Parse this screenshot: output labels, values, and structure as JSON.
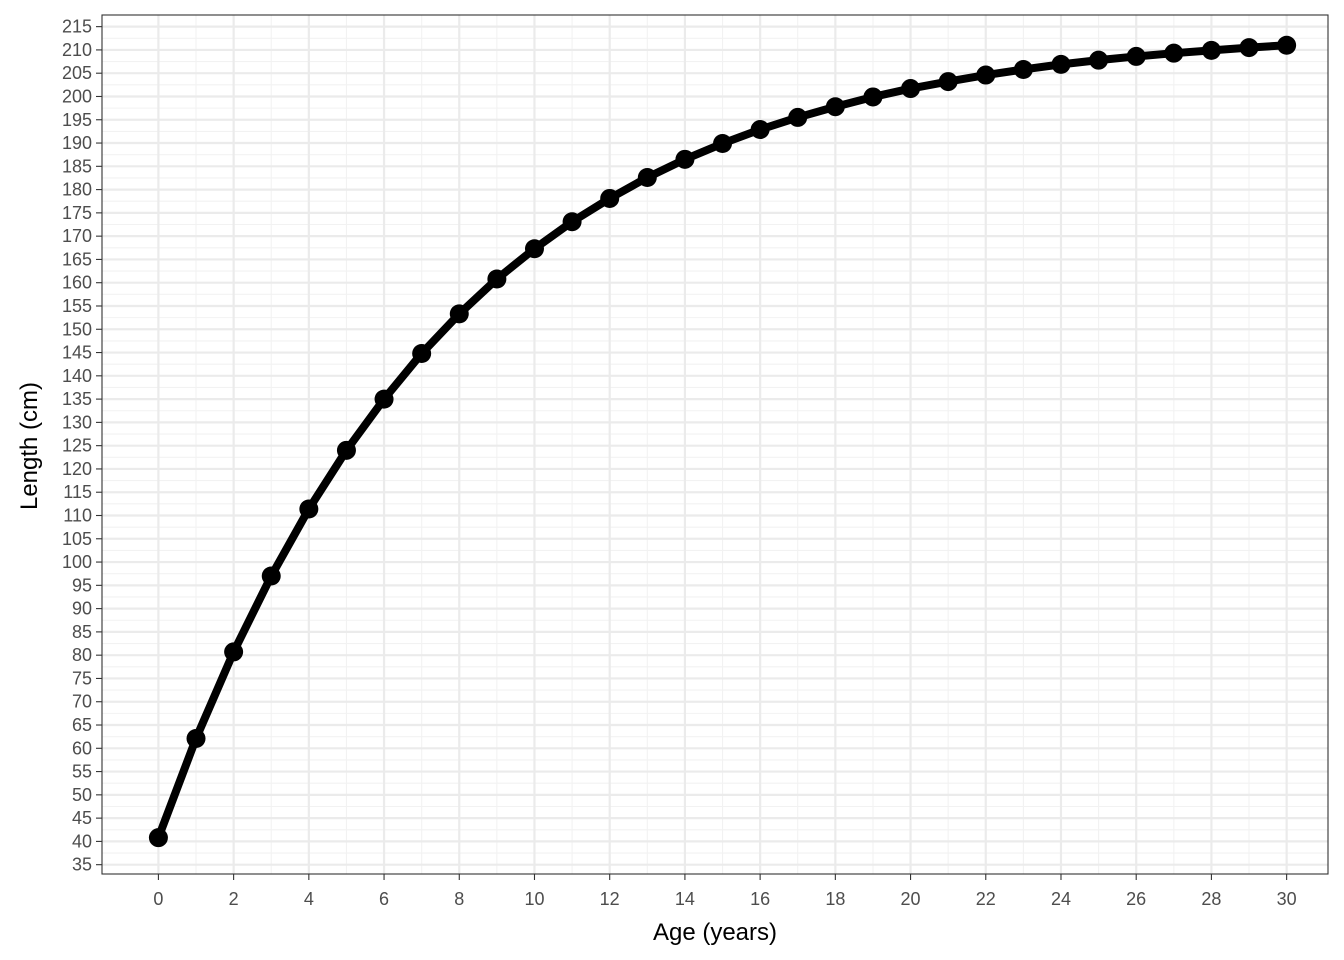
{
  "chart_data": {
    "type": "line",
    "title": "",
    "xlabel": "Age (years)",
    "ylabel": "Length (cm)",
    "xlim": [
      -1.5,
      31.1
    ],
    "ylim": [
      33,
      217.5
    ],
    "x_ticks": [
      0,
      2,
      4,
      6,
      8,
      10,
      12,
      14,
      16,
      18,
      20,
      22,
      24,
      26,
      28,
      30
    ],
    "y_ticks": [
      35,
      40,
      45,
      50,
      55,
      60,
      65,
      70,
      75,
      80,
      85,
      90,
      95,
      100,
      105,
      110,
      115,
      120,
      125,
      130,
      135,
      140,
      145,
      150,
      155,
      160,
      165,
      170,
      175,
      180,
      185,
      190,
      195,
      200,
      205,
      210,
      215
    ],
    "grid": true,
    "legend": "none",
    "series": [
      {
        "x": [
          0,
          1,
          2,
          3,
          4,
          5,
          6,
          7,
          8,
          9,
          10,
          11,
          12,
          13,
          14,
          15,
          16,
          17,
          18,
          19,
          20,
          21,
          22,
          23,
          24,
          25,
          26,
          27,
          28,
          29,
          30
        ],
        "values": [
          40.8,
          62.1,
          80.7,
          97.0,
          111.4,
          124.0,
          135.0,
          144.8,
          153.3,
          160.8,
          167.3,
          173.1,
          178.1,
          182.6,
          186.5,
          189.9,
          192.9,
          195.5,
          197.8,
          199.9,
          201.7,
          203.2,
          204.6,
          205.8,
          206.9,
          207.8,
          208.6,
          209.3,
          209.9,
          210.5,
          211.0
        ],
        "color": "#000000"
      }
    ],
    "colors": {
      "panel_border": "#333333",
      "grid_major": "#ebebeb",
      "grid_minor": "#f2f2f2",
      "tick_label": "#4d4d4d",
      "line": "#000000"
    }
  }
}
